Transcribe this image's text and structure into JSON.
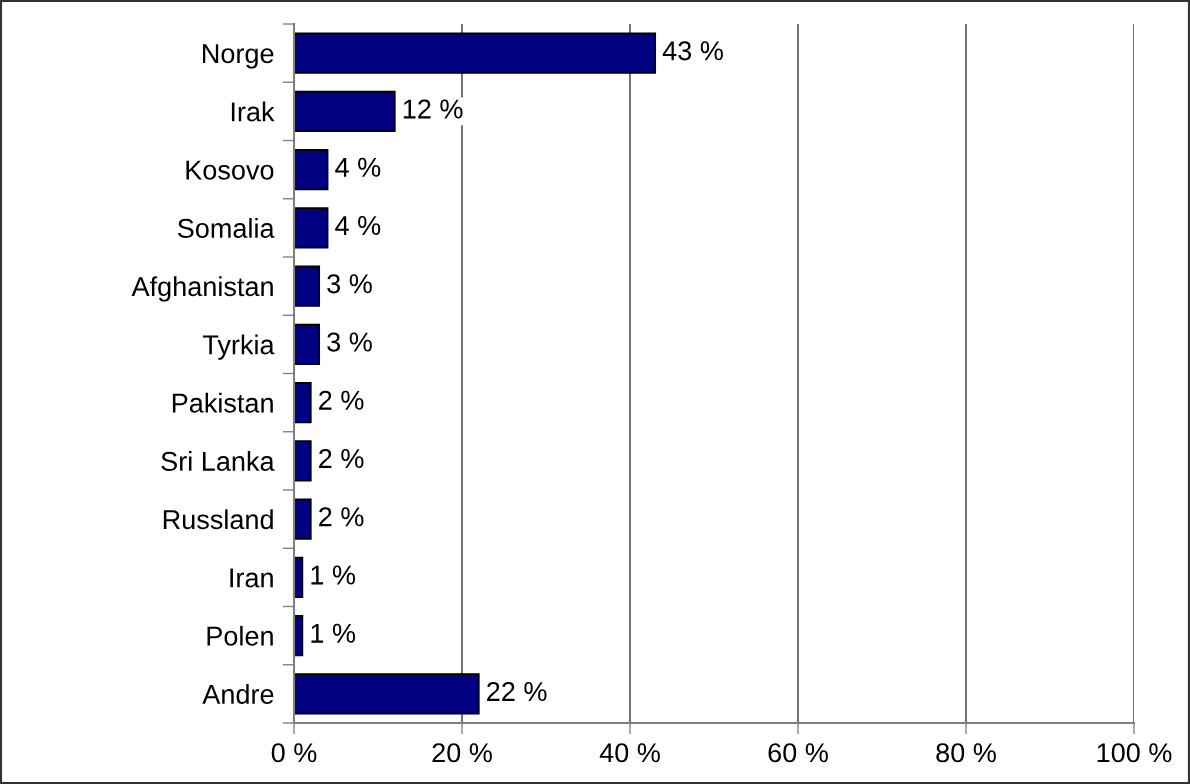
{
  "chart_data": {
    "type": "bar",
    "orientation": "horizontal",
    "categories": [
      "Norge",
      "Irak",
      "Kosovo",
      "Somalia",
      "Afghanistan",
      "Tyrkia",
      "Pakistan",
      "Sri Lanka",
      "Russland",
      "Iran",
      "Polen",
      "Andre"
    ],
    "values": [
      43,
      12,
      4,
      4,
      3,
      3,
      2,
      2,
      2,
      1,
      1,
      22
    ],
    "value_labels": [
      "43 %",
      "12 %",
      "4 %",
      "4 %",
      "3 %",
      "3 %",
      "2 %",
      "2 %",
      "2 %",
      "1 %",
      "1 %",
      "22 %"
    ],
    "color": "#000080",
    "xlim": [
      0,
      100
    ],
    "xticks": [
      {
        "value": 0,
        "label": "0 %"
      },
      {
        "value": 20,
        "label": "20 %"
      },
      {
        "value": 40,
        "label": "40 %"
      },
      {
        "value": 60,
        "label": "60 %"
      },
      {
        "value": 80,
        "label": "80 %"
      },
      {
        "value": 100,
        "label": "100 %"
      }
    ],
    "grid": "x"
  }
}
